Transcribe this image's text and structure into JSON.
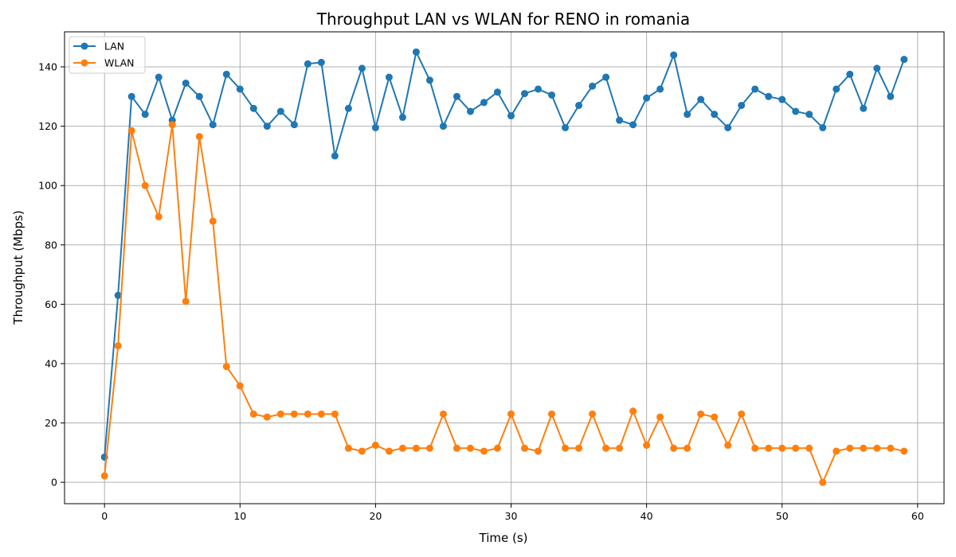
{
  "chart_data": {
    "type": "line",
    "title": "Throughput LAN vs WLAN for RENO in romania",
    "xlabel": "Time (s)",
    "ylabel": "Throughput (Mbps)",
    "xlim": [
      -2.95,
      61.95
    ],
    "ylim": [
      -7.2,
      151.8
    ],
    "xticks": [
      0,
      10,
      20,
      30,
      40,
      50,
      60
    ],
    "yticks": [
      0,
      20,
      40,
      60,
      80,
      100,
      120,
      140
    ],
    "grid": true,
    "legend_position": "top-left",
    "x": [
      0,
      1,
      2,
      3,
      4,
      5,
      6,
      7,
      8,
      9,
      10,
      11,
      12,
      13,
      14,
      15,
      16,
      17,
      18,
      19,
      20,
      21,
      22,
      23,
      24,
      25,
      26,
      27,
      28,
      29,
      30,
      31,
      32,
      33,
      34,
      35,
      36,
      37,
      38,
      39,
      40,
      41,
      42,
      43,
      44,
      45,
      46,
      47,
      48,
      49,
      50,
      51,
      52,
      53,
      54,
      55,
      56,
      57,
      58,
      59
    ],
    "series": [
      {
        "name": "LAN",
        "color": "#1f77b4",
        "values": [
          8.5,
          63,
          130,
          124,
          136.5,
          122,
          134.5,
          130,
          120.5,
          137.5,
          132.5,
          126,
          120,
          125,
          120.5,
          141,
          141.5,
          110,
          126,
          139.5,
          119.5,
          136.5,
          123,
          145,
          135.5,
          120,
          130,
          125,
          128,
          131.5,
          123.5,
          131,
          132.5,
          130.5,
          119.5,
          127,
          133.5,
          136.5,
          122,
          120.5,
          129.5,
          132.5,
          144,
          124,
          129,
          124,
          119.5,
          127,
          132.5,
          130,
          129,
          125,
          124,
          119.5,
          132.5,
          137.5,
          126,
          139.5,
          130,
          142.5
        ]
      },
      {
        "name": "WLAN",
        "color": "#ff7f0e",
        "values": [
          2.2,
          46,
          118.5,
          100,
          89.5,
          120.5,
          61,
          116.5,
          88,
          39,
          32.5,
          23,
          22,
          23,
          23,
          23,
          23,
          23,
          11.5,
          10.5,
          12.5,
          10.5,
          11.5,
          11.5,
          11.5,
          23,
          11.5,
          11.5,
          10.5,
          11.5,
          23,
          11.5,
          10.5,
          23,
          11.5,
          11.5,
          23,
          11.5,
          11.5,
          24,
          12.5,
          22,
          11.5,
          11.5,
          23,
          22,
          12.5,
          23,
          11.5,
          11.5,
          11.5,
          11.5,
          11.5,
          0,
          10.5,
          11.5,
          11.5,
          11.5,
          11.5,
          10.5
        ]
      }
    ]
  }
}
